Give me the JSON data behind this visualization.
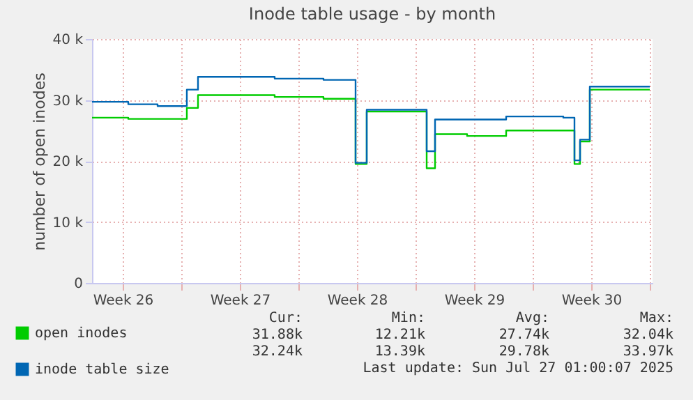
{
  "chart_data": {
    "type": "step",
    "title": "Inode table usage - by month",
    "ylabel": "number of open inodes",
    "xlim": [
      "2025-06-24T16:00",
      "2025-07-28T04:00"
    ],
    "xticks": [
      {
        "value": "2025-06-26T12:00",
        "label": "Week 26"
      },
      {
        "value": "2025-06-30",
        "label": null
      },
      {
        "value": "2025-07-03T12:00",
        "label": "Week 27"
      },
      {
        "value": "2025-07-07",
        "label": null
      },
      {
        "value": "2025-07-10T12:00",
        "label": "Week 28"
      },
      {
        "value": "2025-07-14",
        "label": null
      },
      {
        "value": "2025-07-17T12:00",
        "label": "Week 29"
      },
      {
        "value": "2025-07-21",
        "label": null
      },
      {
        "value": "2025-07-24T12:00",
        "label": "Week 30"
      },
      {
        "value": "2025-07-28",
        "label": null
      }
    ],
    "ylim": [
      0,
      40000
    ],
    "yticks": [
      {
        "value": 0,
        "label": "0"
      },
      {
        "value": 10000,
        "label": "10 k"
      },
      {
        "value": 20000,
        "label": "20 k"
      },
      {
        "value": 30000,
        "label": "30 k"
      },
      {
        "value": 40000,
        "label": "40 k"
      }
    ],
    "grid": true,
    "legend": "bottom left",
    "series": [
      {
        "name": "open inodes",
        "color": "#00cc00",
        "x": [
          "2025-06-24T16:00",
          "2025-06-26T20:00",
          "2025-06-30T08:00",
          "2025-07-01T00:00",
          "2025-07-05T14:00",
          "2025-07-08T12:00",
          "2025-07-10T10:00",
          "2025-07-11T02:00",
          "2025-07-14T16:00",
          "2025-07-15T04:00",
          "2025-07-17T02:00",
          "2025-07-19T10:00",
          "2025-07-23T12:00",
          "2025-07-23T20:00",
          "2025-07-24T10:00",
          "2025-07-28T00:00"
        ],
        "values": [
          27100,
          26900,
          28700,
          30800,
          30500,
          30200,
          19500,
          28100,
          18800,
          24400,
          24100,
          25000,
          19500,
          23200,
          31700,
          31700
        ]
      },
      {
        "name": "inode table size",
        "color": "#0066b3",
        "x": [
          "2025-06-24T16:00",
          "2025-06-26T20:00",
          "2025-06-28T14:00",
          "2025-06-30T08:00",
          "2025-07-01T00:00",
          "2025-07-05T14:00",
          "2025-07-08T12:00",
          "2025-07-10T10:00",
          "2025-07-11T02:00",
          "2025-07-14T16:00",
          "2025-07-15T04:00",
          "2025-07-19T10:00",
          "2025-07-22T20:00",
          "2025-07-23T12:00",
          "2025-07-23T20:00",
          "2025-07-24T10:00",
          "2025-07-28T00:00"
        ],
        "values": [
          29700,
          29300,
          29000,
          31700,
          33800,
          33500,
          33300,
          19700,
          28400,
          21600,
          26800,
          27300,
          27100,
          20100,
          23500,
          32200,
          32200
        ]
      }
    ],
    "annotations": [
      "Cur:",
      "Min:",
      "Avg:",
      "Max:",
      "31.88k",
      "12.21k",
      "27.74k",
      "32.04k",
      "32.24k",
      "13.39k",
      "29.78k",
      "33.97k",
      "Last update: Sun Jul 27 01:00:07 2025"
    ]
  }
}
